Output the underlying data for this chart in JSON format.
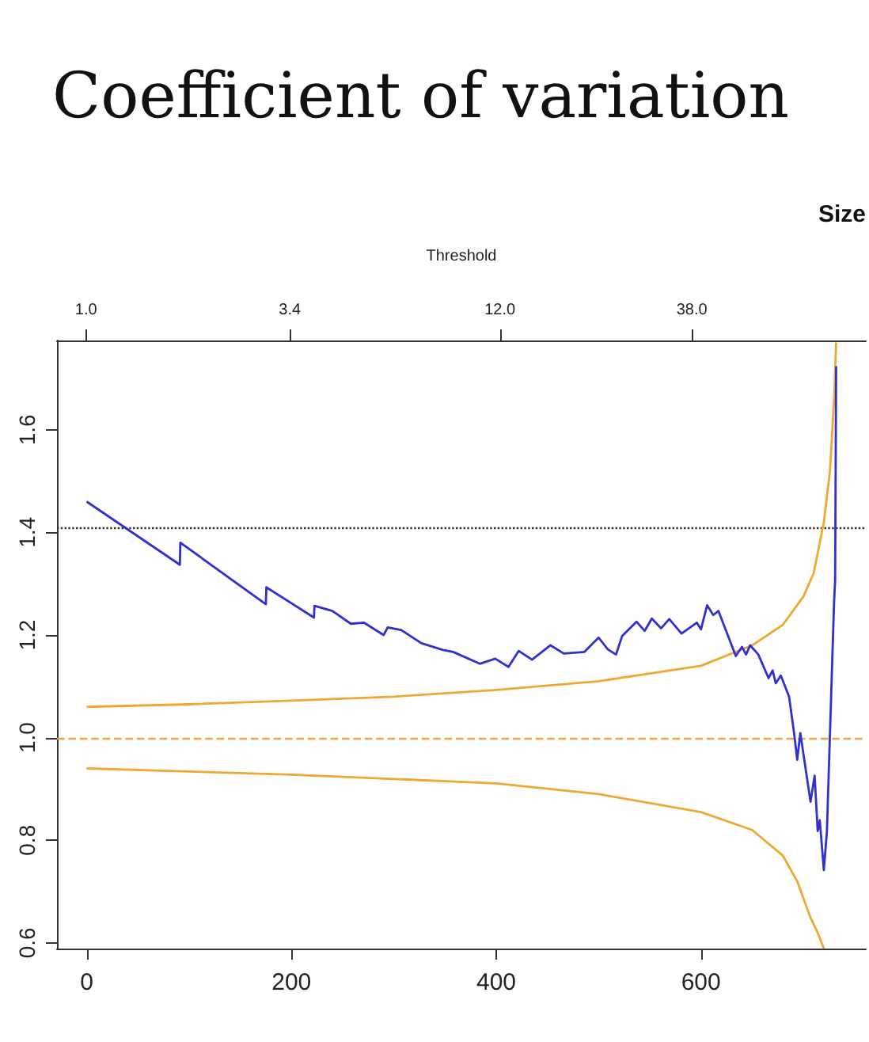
{
  "chart_data": {
    "type": "line",
    "title": "Coefficient of variation",
    "x2label": "Threshold",
    "annotations": [
      "Size"
    ],
    "xlim": [
      -29,
      761
    ],
    "xticks": [
      0,
      200,
      400,
      600
    ],
    "x2lim": [
      0.84,
      108
    ],
    "x2ticks": [
      {
        "value": 1,
        "label": "1.0"
      },
      3.4,
      {
        "value": 12,
        "label": "12.0"
      },
      {
        "value": 38,
        "label": "38.0"
      }
    ],
    "log": "x2",
    "ylim": [
      0.589,
      1.774
    ],
    "yticks": [
      0.6,
      0.8,
      {
        "value": 1,
        "label": "1.0"
      },
      1.2,
      1.4,
      1.6
    ],
    "grid": false,
    "marker": "none",
    "line_style": "solid",
    "ref_lines": [
      {
        "axis": "y",
        "value": 1.414,
        "color": "#333333",
        "line_style": "dotted"
      },
      {
        "axis": "y",
        "value": 1,
        "color": "#f0a830",
        "line_style": "dashed"
      }
    ],
    "series": [
      {
        "color": "#3030d0",
        "x": [
          0,
          91,
          91.5,
          175,
          175.5,
          222,
          222.5,
          240,
          258,
          271,
          290,
          294,
          307,
          327,
          348,
          358,
          384,
          399,
          412,
          422,
          435,
          453,
          466,
          486,
          500,
          509,
          517,
          523,
          537,
          545,
          552,
          561,
          569,
          581,
          596,
          600,
          606,
          612,
          617,
          634,
          640,
          644,
          648,
          656,
          666,
          670,
          673,
          678,
          686,
          691,
          694,
          697,
          707,
          711,
          714,
          716,
          720,
          723,
          730,
          731,
          732
        ],
        "values": [
          1.46,
          1.337,
          1.38,
          1.26,
          1.293,
          1.234,
          1.257,
          1.247,
          1.222,
          1.224,
          1.2,
          1.215,
          1.21,
          1.184,
          1.171,
          1.167,
          1.144,
          1.154,
          1.138,
          1.169,
          1.152,
          1.18,
          1.164,
          1.167,
          1.195,
          1.172,
          1.162,
          1.198,
          1.226,
          1.208,
          1.232,
          1.213,
          1.231,
          1.203,
          1.224,
          1.211,
          1.258,
          1.239,
          1.247,
          1.159,
          1.177,
          1.162,
          1.18,
          1.162,
          1.116,
          1.131,
          1.106,
          1.121,
          1.08,
          1.008,
          0.957,
          1.009,
          0.875,
          0.926,
          0.818,
          0.839,
          0.742,
          0.818,
          1.265,
          1.306,
          1.724
        ]
      },
      {
        "color": "#f0a830",
        "x": [
          0,
          100,
          200,
          300,
          400,
          500,
          600,
          650,
          680,
          700,
          710,
          720,
          726,
          730,
          732
        ],
        "values": [
          1.06,
          1.065,
          1.072,
          1.08,
          1.093,
          1.11,
          1.14,
          1.18,
          1.22,
          1.275,
          1.32,
          1.42,
          1.52,
          1.66,
          1.77
        ]
      },
      {
        "color": "#f0a830",
        "x": [
          0,
          200,
          400,
          500,
          600,
          650,
          680,
          694,
          707,
          714,
          720
        ],
        "values": [
          0.94,
          0.928,
          0.911,
          0.89,
          0.855,
          0.82,
          0.77,
          0.72,
          0.649,
          0.62,
          0.589
        ]
      }
    ]
  }
}
